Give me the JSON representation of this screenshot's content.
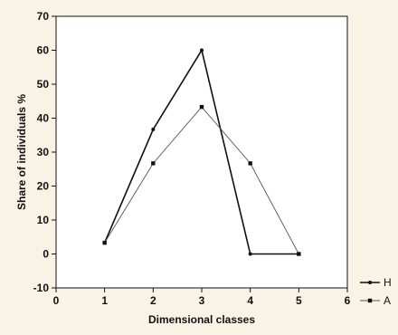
{
  "chart_data": {
    "type": "line",
    "title": "",
    "xlabel": "Dimensional classes",
    "ylabel": "Share of individuals %",
    "xlim": [
      0,
      6
    ],
    "ylim": [
      -10,
      70
    ],
    "xticks": [
      0,
      1,
      2,
      3,
      4,
      5,
      6
    ],
    "yticks": [
      -10,
      0,
      10,
      20,
      30,
      40,
      50,
      60,
      70
    ],
    "grid": false,
    "legend_position": "outside-bottom-right",
    "series": [
      {
        "name": "H",
        "marker": "circle",
        "color": "#111111",
        "x": [
          1,
          2,
          3,
          4,
          5
        ],
        "y": [
          3.3,
          36.7,
          60.0,
          0.0,
          0.0
        ]
      },
      {
        "name": "A",
        "marker": "square",
        "color": "#555555",
        "x": [
          1,
          2,
          3,
          4,
          5
        ],
        "y": [
          3.3,
          26.7,
          43.3,
          26.7,
          0.0
        ]
      }
    ]
  },
  "colors": {
    "background": "#f8f3e4",
    "plot_area": "#ffffff",
    "axes": "#111111"
  }
}
